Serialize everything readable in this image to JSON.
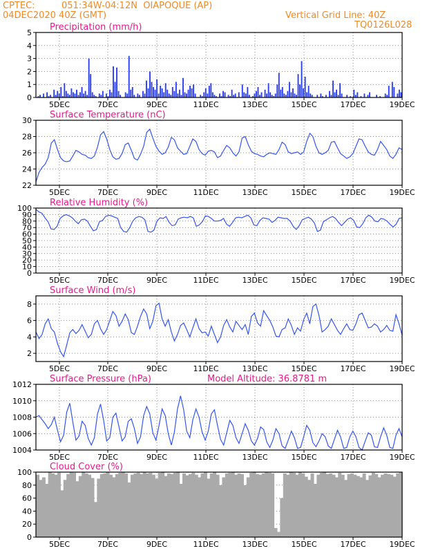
{
  "header": {
    "source": "CPTEC:",
    "location": "051:34W-04:12N  OIAPOQUE (AP)",
    "init_time": "04DEC2020 40Z (GMT)",
    "vertical_grid": "Vertical Grid Line: 40Z",
    "model_id": "TQ0126L028"
  },
  "colors": {
    "header": "#f08a24",
    "title": "#e8198b",
    "line": "#3355ee",
    "bar": "#2a3ef0",
    "cloud": "#aaaaaa",
    "grid": "#888888"
  },
  "chart_data": [
    {
      "type": "bar",
      "title": "Precipitation (mm/h)",
      "x_ticks": [
        "5DEC",
        "7DEC",
        "9DEC",
        "11DEC",
        "13DEC",
        "15DEC",
        "17DEC",
        "19DEC"
      ],
      "ylim": [
        0,
        5
      ],
      "y_ticks": [
        0,
        1,
        2,
        3,
        4,
        5
      ],
      "values": [
        0,
        0.1,
        0.2,
        0,
        0.3,
        0,
        0.4,
        0.1,
        0.2,
        0,
        0.6,
        0.2,
        0.5,
        0.3,
        0.8,
        0.1,
        1.1,
        0.5,
        0.3,
        0.2,
        0.7,
        0.4,
        0.3,
        0.6,
        0.2,
        0.4,
        0.8,
        0.3,
        0.5,
        0.2,
        3.0,
        1.8,
        0.4,
        0.2,
        0.1,
        0,
        0.3,
        0.2,
        0.5,
        0,
        0.3,
        0.1,
        0.6,
        0.4,
        2.4,
        1.2,
        2.3,
        0.5,
        0.2,
        0,
        0,
        0.4,
        0.3,
        3.2,
        0.6,
        0.8,
        0.2,
        0,
        0.3,
        0.2,
        0,
        0.5,
        0.3,
        1.3,
        0.7,
        2.0,
        1.2,
        0.8,
        0.6,
        1.4,
        0.3,
        0.9,
        0.7,
        0.4,
        1.1,
        0.6,
        0.3,
        0.2,
        0.8,
        0.5,
        1.2,
        0.3,
        0.6,
        0.2,
        1.5,
        0.4,
        0.3,
        0.6,
        0.9,
        0.7,
        1.0,
        0.3,
        0,
        0,
        0.2,
        0.1,
        0.4,
        0.7,
        0.3,
        0.9,
        1.1,
        0.4,
        0.2,
        0.1,
        0,
        0.3,
        0.1,
        0.5,
        0.4,
        0,
        0.2,
        0.1,
        0.6,
        0.2,
        0.3,
        0,
        0.4,
        0,
        1.0,
        0.4,
        0.3,
        0.8,
        0.2,
        0,
        0.1,
        0.3,
        0.5,
        0.8,
        0.2,
        0.4,
        0,
        0.6,
        0.3,
        1.1,
        0.4,
        0.2,
        0.1,
        0.3,
        1.0,
        1.9,
        0.6,
        0.8,
        0.3,
        0.2,
        0.5,
        1.2,
        0.4,
        0.7,
        0.3,
        0.2,
        1.8,
        1.0,
        2.8,
        0.7,
        1.6,
        0.4,
        0.9,
        0.3,
        0.2,
        0,
        0,
        0.2,
        0,
        0.3,
        0.1,
        0,
        0.2,
        0,
        0.5,
        0.2,
        1.3,
        0.4,
        0.6,
        0.2,
        1.1,
        0.3,
        0,
        0,
        0.2,
        0,
        0.1,
        0,
        0.6,
        0.2,
        0.4,
        0,
        0.1,
        0,
        0.3,
        0,
        0.2,
        0.4,
        0,
        0,
        0,
        0.2,
        0,
        0.1,
        0,
        0,
        0.3,
        0.2,
        0.9,
        0,
        1.2,
        0.8,
        0,
        0.3,
        0.6,
        0.4
      ]
    },
    {
      "type": "line",
      "title": "Surface Temperature (nC)",
      "x_ticks": [
        "5DEC",
        "7DEC",
        "9DEC",
        "11DEC",
        "13DEC",
        "15DEC",
        "17DEC",
        "19DEC"
      ],
      "ylim": [
        22,
        30
      ],
      "y_ticks": [
        22,
        24,
        26,
        28,
        30
      ],
      "values": [
        22.4,
        23.6,
        24.2,
        24.6,
        25.4,
        27.2,
        27.6,
        26.4,
        25.4,
        25.0,
        24.9,
        25.0,
        25.6,
        26.3,
        26.1,
        25.8,
        25.7,
        25.4,
        25.3,
        25.6,
        26.7,
        28.2,
        28.6,
        27.7,
        26.4,
        25.5,
        25.2,
        25.3,
        25.9,
        27.0,
        27.2,
        26.3,
        25.3,
        25.1,
        25.8,
        26.8,
        28.5,
        28.9,
        27.8,
        26.8,
        26.2,
        25.8,
        26.0,
        26.7,
        27.9,
        27.6,
        26.6,
        26.2,
        25.8,
        25.9,
        26.8,
        27.7,
        27.4,
        26.4,
        25.9,
        25.7,
        26.2,
        26.3,
        26.1,
        25.4,
        25.6,
        26.3,
        26.9,
        26.6,
        26.0,
        25.6,
        26.1,
        27.8,
        28.0,
        27.0,
        26.2,
        25.9,
        25.8,
        25.6,
        25.5,
        25.8,
        26.0,
        25.9,
        25.8,
        26.4,
        27.3,
        27.0,
        26.1,
        25.9,
        26.0,
        26.1,
        25.8,
        26.1,
        27.4,
        28.4,
        28.0,
        26.8,
        26.0,
        25.8,
        26.0,
        26.3,
        27.3,
        27.4,
        26.6,
        25.9,
        25.6,
        25.3,
        25.5,
        25.9,
        26.8,
        27.7,
        27.6,
        26.8,
        26.1,
        25.8,
        25.7,
        26.4,
        27.4,
        26.9,
        26.4,
        25.6,
        25.3,
        25.8,
        26.6,
        26.4
      ]
    },
    {
      "type": "line",
      "title": "Relative Humidity (%)",
      "x_ticks": [
        "5DEC",
        "7DEC",
        "9DEC",
        "11DEC",
        "13DEC",
        "15DEC",
        "17DEC",
        "19DEC"
      ],
      "ylim": [
        0,
        100
      ],
      "y_ticks": [
        0,
        10,
        20,
        30,
        40,
        50,
        60,
        70,
        80,
        90,
        100
      ],
      "values": [
        98,
        94,
        92,
        85,
        79,
        68,
        67,
        72,
        84,
        88,
        90,
        88,
        85,
        80,
        76,
        82,
        83,
        80,
        72,
        65,
        67,
        79,
        81,
        87,
        89,
        88,
        86,
        84,
        70,
        64,
        63,
        70,
        80,
        85,
        87,
        86,
        82,
        64,
        63,
        66,
        80,
        85,
        84,
        87,
        78,
        73,
        74,
        83,
        85,
        86,
        85,
        87,
        85,
        72,
        74,
        79,
        88,
        87,
        84,
        80,
        80,
        81,
        84,
        75,
        72,
        78,
        85,
        86,
        85,
        87,
        89,
        85,
        74,
        73,
        81,
        85,
        84,
        83,
        78,
        81,
        86,
        85,
        84,
        84,
        80,
        72,
        67,
        73,
        82,
        84,
        86,
        83,
        77,
        64,
        66,
        79,
        82,
        85,
        87,
        84,
        78,
        73,
        78,
        83,
        85,
        81,
        71,
        70,
        76,
        85,
        89,
        86,
        80,
        79,
        84,
        83,
        80,
        75,
        71,
        75,
        84,
        85
      ]
    },
    {
      "type": "line",
      "title": "Surface Wind (m/s)",
      "x_ticks": [
        "5DEC",
        "7DEC",
        "9DEC",
        "11DEC",
        "13DEC",
        "15DEC",
        "17DEC",
        "19DEC"
      ],
      "ylim": [
        1,
        9
      ],
      "y_ticks": [
        2,
        4,
        6,
        8
      ],
      "values": [
        4.6,
        3.8,
        4.3,
        5.6,
        6.2,
        5.0,
        4.6,
        3.2,
        2.2,
        1.6,
        3.0,
        4.5,
        4.9,
        4.4,
        4.8,
        5.5,
        4.7,
        3.9,
        4.3,
        5.6,
        6.0,
        5.0,
        4.3,
        4.9,
        6.0,
        7.1,
        6.6,
        5.3,
        5.9,
        6.8,
        6.1,
        4.5,
        4.3,
        5.3,
        6.5,
        7.4,
        6.8,
        5.0,
        5.9,
        7.8,
        8.1,
        6.2,
        5.3,
        6.1,
        4.6,
        3.5,
        4.3,
        5.4,
        5.7,
        4.9,
        4.0,
        5.1,
        6.2,
        5.0,
        4.5,
        4.6,
        4.1,
        5.3,
        4.3,
        3.3,
        4.0,
        5.4,
        6.1,
        5.2,
        4.6,
        5.9,
        5.4,
        4.9,
        5.5,
        4.3,
        6.5,
        6.9,
        5.7,
        5.3,
        7.2,
        6.6,
        6.0,
        5.2,
        4.1,
        4.0,
        4.9,
        5.1,
        6.2,
        5.4,
        4.3,
        5.1,
        4.7,
        6.1,
        6.9,
        5.6,
        7.7,
        8.0,
        6.6,
        4.6,
        4.9,
        5.3,
        6.2,
        5.5,
        4.8,
        4.3,
        5.0,
        5.6,
        4.9,
        4.8,
        5.6,
        6.7,
        6.9,
        6.0,
        5.1,
        5.2,
        5.6,
        5.3,
        4.6,
        4.9,
        5.4,
        4.8,
        4.7,
        6.7,
        5.6,
        4.2
      ]
    },
    {
      "type": "line",
      "title": "Surface Pressure (hPa)",
      "annotation": "Model Altitude: 36.8781 m",
      "x_ticks": [
        "5DEC",
        "7DEC",
        "9DEC",
        "11DEC",
        "13DEC",
        "15DEC",
        "17DEC",
        "19DEC"
      ],
      "ylim": [
        1004,
        1012
      ],
      "y_ticks": [
        1004,
        1006,
        1008,
        1010,
        1012
      ],
      "values": [
        1008.0,
        1008.2,
        1007.7,
        1007.2,
        1006.6,
        1007.1,
        1008.0,
        1006.4,
        1005.0,
        1005.8,
        1008.6,
        1009.7,
        1007.4,
        1005.2,
        1005.7,
        1007.5,
        1007.0,
        1005.4,
        1004.6,
        1005.5,
        1008.4,
        1009.6,
        1007.6,
        1005.1,
        1005.5,
        1008.0,
        1008.5,
        1006.8,
        1005.1,
        1005.6,
        1007.5,
        1007.8,
        1006.6,
        1004.8,
        1005.6,
        1008.2,
        1009.3,
        1008.4,
        1006.1,
        1005.2,
        1007.0,
        1009.0,
        1008.2,
        1006.0,
        1004.6,
        1006.2,
        1009.0,
        1010.6,
        1008.9,
        1006.3,
        1005.5,
        1007.7,
        1009.0,
        1008.0,
        1006.2,
        1005.2,
        1006.3,
        1008.4,
        1008.9,
        1007.0,
        1005.3,
        1004.6,
        1006.1,
        1007.6,
        1007.0,
        1005.5,
        1004.8,
        1006.0,
        1007.2,
        1006.4,
        1005.1,
        1004.6,
        1005.4,
        1006.8,
        1006.5,
        1005.0,
        1004.3,
        1005.2,
        1006.6,
        1006.0,
        1004.5,
        1004.2,
        1005.2,
        1006.3,
        1005.5,
        1004.2,
        1004.3,
        1005.6,
        1007.0,
        1006.4,
        1004.9,
        1004.4,
        1005.1,
        1006.0,
        1005.6,
        1004.5,
        1004.2,
        1005.3,
        1006.4,
        1005.6,
        1004.2,
        1004.3,
        1005.6,
        1006.3,
        1005.6,
        1004.3,
        1004.0,
        1005.1,
        1006.1,
        1005.8,
        1004.4,
        1004.3,
        1005.6,
        1006.7,
        1005.8,
        1004.3,
        1004.2,
        1005.8,
        1006.6,
        1005.6
      ]
    },
    {
      "type": "area",
      "title": "Cloud Cover (%)",
      "x_ticks": [
        "5DEC",
        "7DEC",
        "9DEC",
        "11DEC",
        "13DEC",
        "15DEC",
        "17DEC",
        "19DEC"
      ],
      "ylim": [
        0,
        100
      ],
      "y_ticks": [
        0,
        20,
        40,
        60,
        80,
        100
      ],
      "values": [
        96,
        88,
        92,
        82,
        100,
        98,
        96,
        99,
        72,
        88,
        97,
        100,
        99,
        86,
        94,
        100,
        98,
        96,
        91,
        54,
        90,
        97,
        98,
        100,
        96,
        92,
        97,
        99,
        100,
        98,
        84,
        96,
        98,
        99,
        97,
        100,
        98,
        99,
        96,
        90,
        99,
        100,
        94,
        98,
        97,
        99,
        100,
        82,
        98,
        95,
        97,
        99,
        96,
        92,
        98,
        100,
        90,
        98,
        100,
        96,
        80,
        92,
        98,
        99,
        100,
        96,
        98,
        97,
        80,
        92,
        99,
        100,
        97,
        96,
        98,
        100,
        99,
        98,
        14,
        8,
        60,
        98,
        96,
        100,
        99,
        96,
        100,
        98,
        93,
        88,
        98,
        82,
        96,
        99,
        100,
        97,
        98,
        96,
        92,
        99,
        96,
        88,
        97,
        98,
        96,
        94,
        92,
        98,
        88,
        95,
        99,
        97,
        92,
        96,
        98,
        97,
        96,
        93,
        98,
        100
      ]
    }
  ]
}
